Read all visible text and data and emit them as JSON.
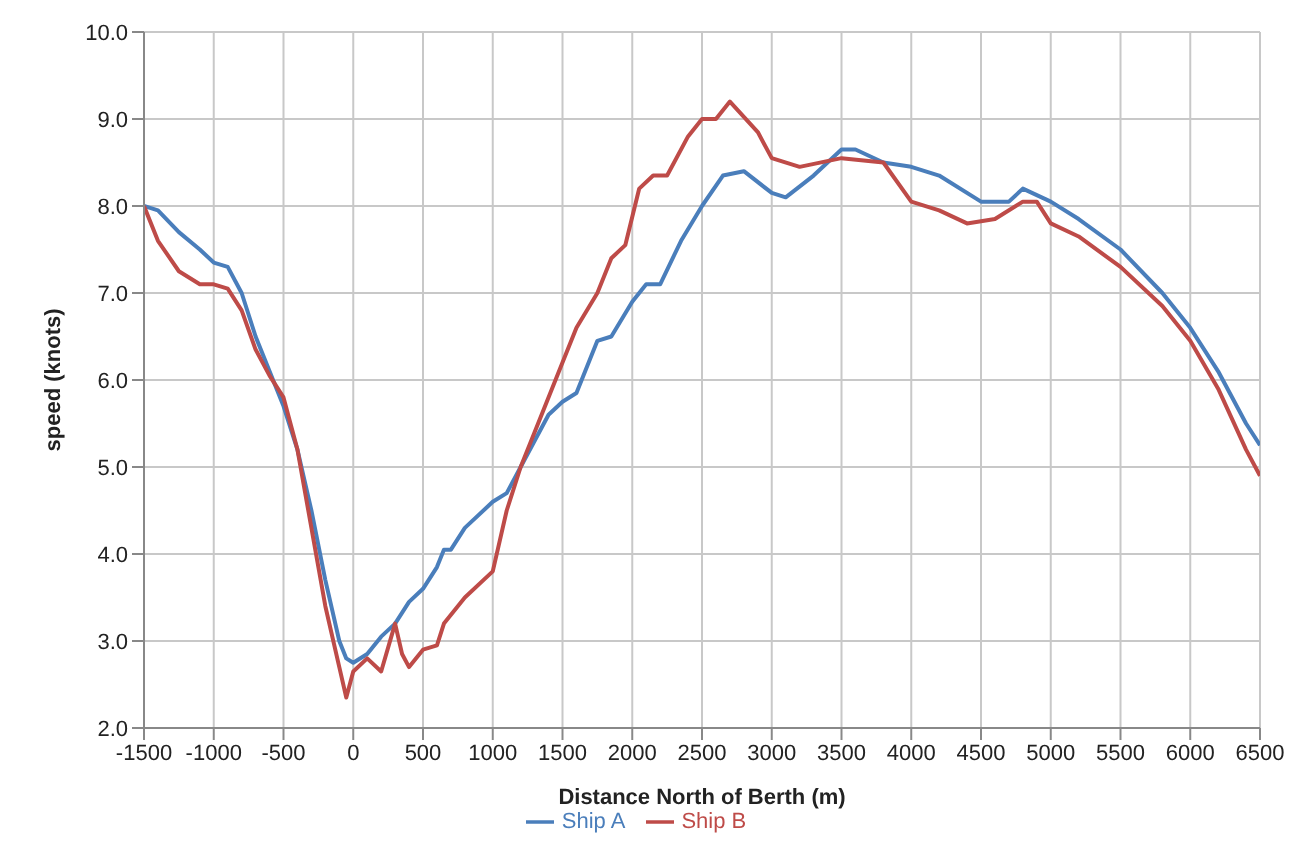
{
  "chart_data": {
    "type": "line",
    "xlabel": "Distance North of Berth (m)",
    "ylabel": "speed (knots)",
    "xlim": [
      -1500,
      6500
    ],
    "xticks": [
      -1500,
      -1000,
      -500,
      0,
      500,
      1000,
      1500,
      2000,
      2500,
      3000,
      3500,
      4000,
      4500,
      5000,
      5500,
      6000,
      6500
    ],
    "ylim": [
      2,
      10
    ],
    "yticks": [
      {
        "value": 2,
        "label": "2.0"
      },
      {
        "value": 3,
        "label": "3.0"
      },
      {
        "value": 4,
        "label": "4.0"
      },
      {
        "value": 5,
        "label": "5.0"
      },
      {
        "value": 6,
        "label": "6.0"
      },
      {
        "value": 7,
        "label": "7.0"
      },
      {
        "value": 8,
        "label": "8.0"
      },
      {
        "value": 9,
        "label": "9.0"
      },
      {
        "value": 10,
        "label": "10.0"
      }
    ],
    "grid": true,
    "legend": "bottom",
    "marker": "none",
    "line_style": "solid",
    "series": [
      {
        "name": "Ship A",
        "color": "#4a7ebb",
        "x": [
          -1500,
          -1400,
          -1250,
          -1100,
          -1000,
          -900,
          -800,
          -700,
          -600,
          -500,
          -400,
          -300,
          -200,
          -100,
          -50,
          0,
          100,
          200,
          300,
          400,
          500,
          600,
          650,
          700,
          800,
          1000,
          1100,
          1200,
          1400,
          1500,
          1600,
          1750,
          1850,
          2000,
          2100,
          2200,
          2350,
          2500,
          2650,
          2800,
          3000,
          3100,
          3300,
          3500,
          3600,
          3800,
          4000,
          4200,
          4500,
          4700,
          4800,
          5000,
          5200,
          5500,
          5800,
          6000,
          6200,
          6400,
          6500
        ],
        "values": [
          8.0,
          7.95,
          7.7,
          7.5,
          7.35,
          7.3,
          7.0,
          6.5,
          6.1,
          5.7,
          5.2,
          4.5,
          3.7,
          3.0,
          2.8,
          2.75,
          2.85,
          3.05,
          3.2,
          3.45,
          3.6,
          3.85,
          4.05,
          4.05,
          4.3,
          4.6,
          4.7,
          5.0,
          5.6,
          5.75,
          5.85,
          6.45,
          6.5,
          6.9,
          7.1,
          7.1,
          7.6,
          8.0,
          8.35,
          8.4,
          8.15,
          8.1,
          8.35,
          8.65,
          8.65,
          8.5,
          8.45,
          8.35,
          8.05,
          8.05,
          8.2,
          8.05,
          7.85,
          7.5,
          7.0,
          6.6,
          6.1,
          5.5,
          5.25
        ]
      },
      {
        "name": "Ship B",
        "color": "#be4b48",
        "x": [
          -1500,
          -1400,
          -1250,
          -1100,
          -1000,
          -900,
          -800,
          -700,
          -600,
          -500,
          -400,
          -300,
          -200,
          -100,
          -50,
          0,
          100,
          200,
          300,
          350,
          400,
          500,
          600,
          650,
          800,
          1000,
          1100,
          1200,
          1300,
          1500,
          1600,
          1750,
          1850,
          1950,
          2050,
          2150,
          2250,
          2400,
          2500,
          2600,
          2700,
          2900,
          3000,
          3200,
          3500,
          3800,
          4000,
          4200,
          4400,
          4600,
          4800,
          4900,
          5000,
          5200,
          5500,
          5800,
          6000,
          6200,
          6400,
          6500
        ],
        "values": [
          8.0,
          7.6,
          7.25,
          7.1,
          7.1,
          7.05,
          6.8,
          6.35,
          6.05,
          5.8,
          5.2,
          4.3,
          3.4,
          2.7,
          2.35,
          2.65,
          2.8,
          2.65,
          3.2,
          2.85,
          2.7,
          2.9,
          2.95,
          3.2,
          3.5,
          3.8,
          4.5,
          5.0,
          5.4,
          6.2,
          6.6,
          7.0,
          7.4,
          7.55,
          8.2,
          8.35,
          8.35,
          8.8,
          9.0,
          9.0,
          9.2,
          8.85,
          8.55,
          8.45,
          8.55,
          8.5,
          8.05,
          7.95,
          7.8,
          7.85,
          8.05,
          8.05,
          7.8,
          7.65,
          7.3,
          6.85,
          6.45,
          5.9,
          5.2,
          4.9
        ]
      }
    ]
  }
}
